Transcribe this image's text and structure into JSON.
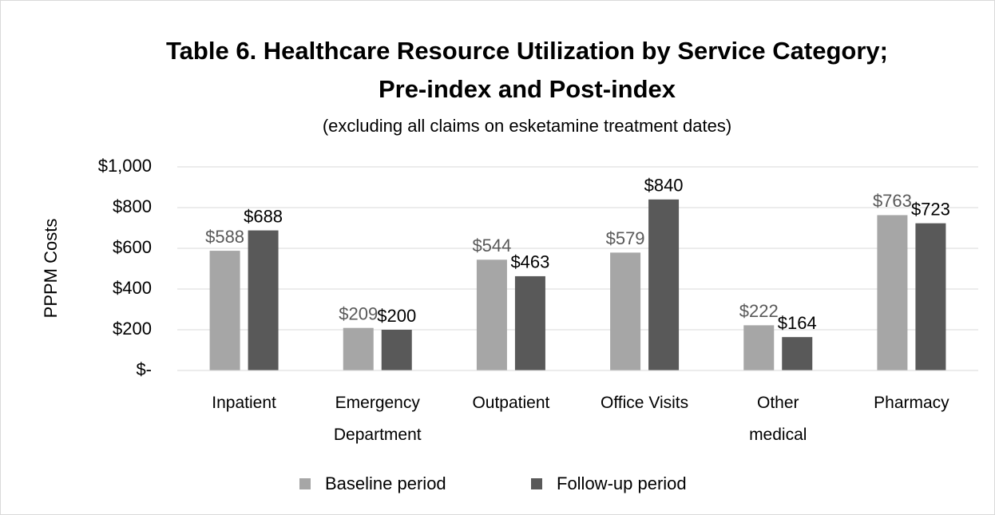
{
  "chart_data": {
    "type": "bar",
    "title": "Table 6. Healthcare Resource Utilization by Service Category; Pre-index and Post-index",
    "subtitle": "(excluding all claims on esketamine treatment dates)",
    "y_label": "PPPM Costs",
    "categories": [
      "Inpatient",
      "Emergency Department",
      "Outpatient",
      "Office Visits",
      "Other medical",
      "Pharmacy"
    ],
    "series": [
      {
        "name": "Baseline period",
        "color": "#a6a6a6",
        "values": [
          588,
          209,
          544,
          579,
          222,
          763
        ],
        "value_labels": [
          "$588",
          "$209",
          "$544",
          "$579",
          "$222",
          "$763"
        ]
      },
      {
        "name": "Follow-up period",
        "color": "#595959",
        "values": [
          688,
          200,
          463,
          840,
          164,
          723
        ],
        "value_labels": [
          "$688",
          "$200",
          "$463",
          "$840",
          "$164",
          "$723"
        ]
      }
    ],
    "ylim": [
      0,
      1000
    ],
    "yticks": [
      {
        "value": 0,
        "label": "$-"
      },
      {
        "value": 200,
        "label": "$200"
      },
      {
        "value": 400,
        "label": "$400"
      },
      {
        "value": 600,
        "label": "$600"
      },
      {
        "value": 800,
        "label": "$800"
      },
      {
        "value": 1000,
        "label": "$1,000"
      }
    ],
    "grid": true,
    "legend": "bottom"
  }
}
